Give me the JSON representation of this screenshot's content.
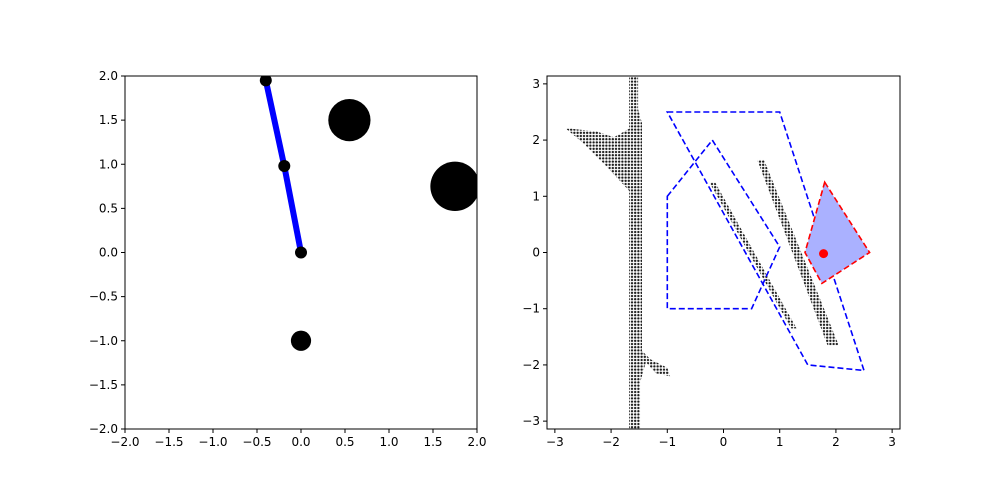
{
  "chart_data": [
    {
      "type": "scatter",
      "title": "",
      "xlabel": "",
      "ylabel": "",
      "xlim": [
        -2,
        2
      ],
      "ylim": [
        -2,
        2
      ],
      "xticks": [
        -2.0,
        -1.5,
        -1.0,
        -0.5,
        0.0,
        0.5,
        1.0,
        1.5,
        2.0
      ],
      "yticks": [
        -2.0,
        -1.5,
        -1.0,
        -0.5,
        0.0,
        0.5,
        1.0,
        1.5,
        2.0
      ],
      "xtick_labels": [
        "−2.0",
        "−1.5",
        "−1.0",
        "−0.5",
        "0.0",
        "0.5",
        "1.0",
        "1.5",
        "2.0"
      ],
      "ytick_labels": [
        "−2.0",
        "−1.5",
        "−1.0",
        "−0.5",
        "0.0",
        "0.5",
        "1.0",
        "1.5",
        "2.0"
      ],
      "obstacles": [
        {
          "x": 0.55,
          "y": 1.5,
          "r": 0.24
        },
        {
          "x": 1.75,
          "y": 0.75,
          "r": 0.28
        },
        {
          "x": 0.0,
          "y": -1.0,
          "r": 0.115
        }
      ],
      "arm": {
        "color": "#0000ff",
        "joints": [
          {
            "x": 0.0,
            "y": 0.0
          },
          {
            "x": -0.19,
            "y": 0.98
          },
          {
            "x": -0.4,
            "y": 1.95
          }
        ]
      }
    },
    {
      "type": "scatter",
      "title": "",
      "xlabel": "",
      "ylabel": "",
      "xlim": [
        -3.14,
        3.14
      ],
      "ylim": [
        -3.14,
        3.14
      ],
      "xticks": [
        -3,
        -2,
        -1,
        0,
        1,
        2,
        3
      ],
      "yticks": [
        -3,
        -2,
        -1,
        0,
        1,
        2,
        3
      ],
      "xtick_labels": [
        "−3",
        "−2",
        "−1",
        "0",
        "1",
        "2",
        "3"
      ],
      "ytick_labels": [
        "−3",
        "−2",
        "−1",
        "0",
        "1",
        "2",
        "3"
      ],
      "configuration_obstacles": [
        {
          "name": "left band",
          "outline": [
            [
              -1.68,
              3.14
            ],
            [
              -1.52,
              3.14
            ],
            [
              -1.52,
              2.55
            ],
            [
              -1.45,
              2.3
            ],
            [
              -1.45,
              -1.75
            ],
            [
              -1.3,
              -1.9
            ],
            [
              -1.0,
              -2.05
            ],
            [
              -0.95,
              -2.2
            ],
            [
              -1.2,
              -2.15
            ],
            [
              -1.38,
              -1.95
            ],
            [
              -1.48,
              -2.3
            ],
            [
              -1.48,
              -3.14
            ],
            [
              -1.68,
              -3.14
            ],
            [
              -1.68,
              1.1
            ],
            [
              -2.1,
              1.55
            ],
            [
              -2.5,
              1.95
            ],
            [
              -2.8,
              2.2
            ],
            [
              -2.7,
              2.2
            ],
            [
              -2.25,
              2.15
            ],
            [
              -1.95,
              2.05
            ],
            [
              -1.68,
              2.2
            ]
          ]
        },
        {
          "name": "middle stripe",
          "outline": [
            [
              -0.25,
              1.25
            ],
            [
              -0.15,
              1.25
            ],
            [
              1.3,
              -1.35
            ],
            [
              1.2,
              -1.35
            ]
          ]
        },
        {
          "name": "right stripe",
          "outline": [
            [
              0.6,
              1.65
            ],
            [
              0.72,
              1.65
            ],
            [
              2.05,
              -1.65
            ],
            [
              1.85,
              -1.65
            ]
          ]
        }
      ],
      "dashed_regions": [
        {
          "color": "#0000ff",
          "points": [
            [
              -1.0,
              2.5
            ],
            [
              1.0,
              2.5
            ],
            [
              2.5,
              -2.1
            ],
            [
              1.5,
              -2.0
            ]
          ]
        },
        {
          "color": "#0000ff",
          "points": [
            [
              -1.0,
              1.0
            ],
            [
              -0.2,
              2.0
            ],
            [
              1.0,
              0.1
            ],
            [
              0.5,
              -1.0
            ],
            [
              -1.0,
              -1.0
            ]
          ]
        },
        {
          "color": "#ff0000",
          "fill": "#aab1ff",
          "points": [
            [
              1.8,
              1.25
            ],
            [
              2.6,
              0.0
            ],
            [
              1.75,
              -0.55
            ],
            [
              1.45,
              0.0
            ]
          ]
        }
      ],
      "current_config": {
        "x": 1.78,
        "y": -0.02,
        "color": "#ff0000"
      }
    }
  ]
}
